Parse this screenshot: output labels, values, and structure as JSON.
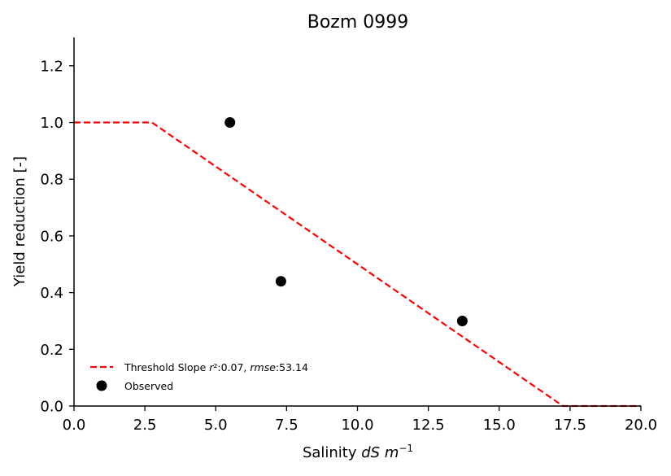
{
  "chart_data": {
    "type": "line",
    "title": "Bozm 0999",
    "xlabel": {
      "prefix": "Salinity ",
      "unit_main": "dS m",
      "unit_sup": "−1"
    },
    "ylabel": "Yield reduction [-]",
    "xlim": [
      0,
      20
    ],
    "ylim": [
      0,
      1.3
    ],
    "x_ticks": [
      0,
      2.5,
      5,
      7.5,
      10,
      12.5,
      15,
      17.5,
      20
    ],
    "x_tick_labels": [
      "0.0",
      "2.5",
      "5.0",
      "7.5",
      "10.0",
      "12.5",
      "15.0",
      "17.5",
      "20.0"
    ],
    "y_ticks": [
      0,
      0.2,
      0.4,
      0.6,
      0.8,
      1.0,
      1.2
    ],
    "y_tick_labels": [
      "0.0",
      "0.2",
      "0.4",
      "0.6",
      "0.8",
      "1.0",
      "1.2"
    ],
    "grid": false,
    "legend_position": "lower-left",
    "series": [
      {
        "name": "Threshold Slope",
        "legend_parts": [
          {
            "text": "Threshold Slope ",
            "italic": false
          },
          {
            "text": "r",
            "italic": true
          },
          {
            "text": "²:0.07, ",
            "italic": false
          },
          {
            "text": "rmse",
            "italic": true
          },
          {
            "text": ":53.14",
            "italic": false
          }
        ],
        "kind": "line",
        "style": "dashed",
        "color": "#ff0000",
        "x": [
          0,
          2.75,
          17.25,
          20
        ],
        "y": [
          1.0,
          1.0,
          0.0,
          0.0
        ]
      },
      {
        "name": "Observed",
        "kind": "scatter",
        "color": "#000000",
        "x": [
          5.5,
          7.3,
          13.7
        ],
        "y": [
          1.0,
          0.44,
          0.3
        ]
      }
    ]
  }
}
